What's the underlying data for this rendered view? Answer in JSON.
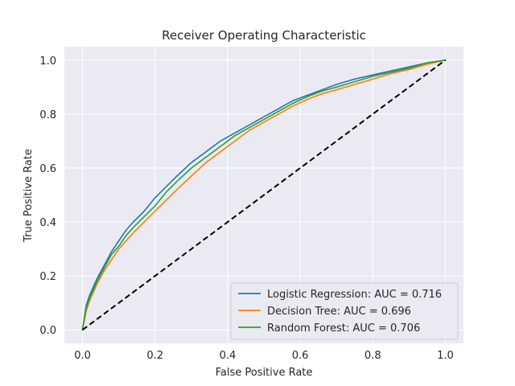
{
  "chart_data": {
    "type": "line",
    "title": "Receiver Operating Characteristic",
    "xlabel": "False Positive Rate",
    "ylabel": "True Positive Rate",
    "xlim": [
      -0.05,
      1.05
    ],
    "ylim": [
      -0.05,
      1.05
    ],
    "xticks": [
      0.0,
      0.2,
      0.4,
      0.6,
      0.8,
      1.0
    ],
    "yticks": [
      0.0,
      0.2,
      0.4,
      0.6,
      0.8,
      1.0
    ],
    "xtick_labels": [
      "0.0",
      "0.2",
      "0.4",
      "0.6",
      "0.8",
      "1.0"
    ],
    "ytick_labels": [
      "0.0",
      "0.2",
      "0.4",
      "0.6",
      "0.8",
      "1.0"
    ],
    "grid": true,
    "legend_position": "lower-right",
    "series": [
      {
        "name": "Logistic Regression: AUC = 0.716",
        "color": "#1f77b4",
        "x": [
          0.0,
          0.01,
          0.02,
          0.04,
          0.06,
          0.08,
          0.1,
          0.12,
          0.14,
          0.17,
          0.2,
          0.23,
          0.26,
          0.3,
          0.34,
          0.38,
          0.42,
          0.46,
          0.5,
          0.54,
          0.58,
          0.62,
          0.66,
          0.7,
          0.75,
          0.8,
          0.85,
          0.9,
          0.95,
          1.0
        ],
        "y": [
          0.0,
          0.09,
          0.13,
          0.19,
          0.24,
          0.29,
          0.33,
          0.37,
          0.4,
          0.44,
          0.49,
          0.53,
          0.57,
          0.62,
          0.66,
          0.7,
          0.73,
          0.76,
          0.79,
          0.82,
          0.85,
          0.87,
          0.89,
          0.91,
          0.93,
          0.945,
          0.96,
          0.975,
          0.99,
          1.0
        ]
      },
      {
        "name": "Decision Tree: AUC = 0.696",
        "color": "#ff7f0e",
        "x": [
          0.0,
          0.01,
          0.02,
          0.04,
          0.06,
          0.08,
          0.1,
          0.12,
          0.14,
          0.17,
          0.2,
          0.23,
          0.26,
          0.3,
          0.34,
          0.38,
          0.42,
          0.46,
          0.5,
          0.54,
          0.58,
          0.62,
          0.66,
          0.7,
          0.75,
          0.8,
          0.85,
          0.9,
          0.95,
          1.0
        ],
        "y": [
          0.0,
          0.07,
          0.11,
          0.17,
          0.22,
          0.26,
          0.3,
          0.33,
          0.36,
          0.4,
          0.44,
          0.48,
          0.52,
          0.57,
          0.62,
          0.66,
          0.7,
          0.74,
          0.77,
          0.8,
          0.83,
          0.855,
          0.875,
          0.89,
          0.91,
          0.93,
          0.95,
          0.965,
          0.985,
          1.0
        ]
      },
      {
        "name": "Random Forest: AUC = 0.706",
        "color": "#2ca02c",
        "x": [
          0.0,
          0.01,
          0.02,
          0.04,
          0.06,
          0.08,
          0.1,
          0.12,
          0.14,
          0.17,
          0.2,
          0.23,
          0.26,
          0.3,
          0.34,
          0.38,
          0.42,
          0.46,
          0.5,
          0.54,
          0.58,
          0.62,
          0.66,
          0.7,
          0.75,
          0.8,
          0.85,
          0.9,
          0.95,
          1.0
        ],
        "y": [
          0.0,
          0.08,
          0.12,
          0.18,
          0.23,
          0.28,
          0.31,
          0.35,
          0.38,
          0.42,
          0.46,
          0.51,
          0.55,
          0.6,
          0.64,
          0.68,
          0.72,
          0.75,
          0.78,
          0.81,
          0.84,
          0.865,
          0.885,
          0.9,
          0.92,
          0.94,
          0.955,
          0.97,
          0.99,
          1.0
        ]
      }
    ],
    "reference_line": {
      "x": [
        0.0,
        1.0
      ],
      "y": [
        0.0,
        1.0
      ],
      "color": "#000000",
      "style": "dashed"
    }
  }
}
